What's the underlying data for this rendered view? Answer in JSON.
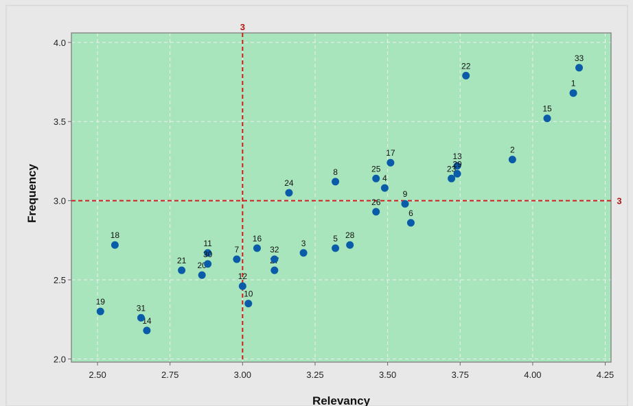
{
  "chart_data": {
    "type": "scatter",
    "xlabel": "Relevancy",
    "ylabel": "Frequency",
    "xlim": [
      2.41,
      4.27
    ],
    "ylim": [
      1.98,
      4.06
    ],
    "xticks": [
      2.5,
      2.75,
      3.0,
      3.25,
      3.5,
      3.75,
      4.0,
      4.25
    ],
    "yticks": [
      2.0,
      2.5,
      3.0,
      3.5,
      4.0
    ],
    "xtick_labels": [
      "2.50",
      "2.75",
      "3.00",
      "3.25",
      "3.50",
      "3.75",
      "4.00",
      "4.25"
    ],
    "ytick_labels": [
      "2.0",
      "2.5",
      "3.0",
      "3.5",
      "4.0"
    ],
    "grid": true,
    "reference_lines": [
      {
        "orientation": "vertical",
        "value": 3.0,
        "label": "3"
      },
      {
        "orientation": "horizontal",
        "value": 3.0,
        "label": "3"
      }
    ],
    "points": [
      {
        "label": "1",
        "x": 4.14,
        "y": 3.68
      },
      {
        "label": "2",
        "x": 3.93,
        "y": 3.26
      },
      {
        "label": "3",
        "x": 3.21,
        "y": 2.67
      },
      {
        "label": "4",
        "x": 3.49,
        "y": 3.08
      },
      {
        "label": "5",
        "x": 3.32,
        "y": 2.7
      },
      {
        "label": "6",
        "x": 3.58,
        "y": 2.86
      },
      {
        "label": "7",
        "x": 2.98,
        "y": 2.63
      },
      {
        "label": "8",
        "x": 3.32,
        "y": 3.12
      },
      {
        "label": "9",
        "x": 3.56,
        "y": 2.98
      },
      {
        "label": "10",
        "x": 3.02,
        "y": 2.35
      },
      {
        "label": "11",
        "x": 2.88,
        "y": 2.67
      },
      {
        "label": "12",
        "x": 3.0,
        "y": 2.46
      },
      {
        "label": "13",
        "x": 3.74,
        "y": 3.22
      },
      {
        "label": "14",
        "x": 2.67,
        "y": 2.18
      },
      {
        "label": "15",
        "x": 4.05,
        "y": 3.52
      },
      {
        "label": "16",
        "x": 3.05,
        "y": 2.7
      },
      {
        "label": "17",
        "x": 3.51,
        "y": 3.24
      },
      {
        "label": "18",
        "x": 2.56,
        "y": 2.72
      },
      {
        "label": "19",
        "x": 2.51,
        "y": 2.3
      },
      {
        "label": "20",
        "x": 2.86,
        "y": 2.53
      },
      {
        "label": "21",
        "x": 2.79,
        "y": 2.56
      },
      {
        "label": "22",
        "x": 3.77,
        "y": 3.79
      },
      {
        "label": "23",
        "x": 3.72,
        "y": 3.14
      },
      {
        "label": "24",
        "x": 3.16,
        "y": 3.05
      },
      {
        "label": "25",
        "x": 3.46,
        "y": 3.14
      },
      {
        "label": "26",
        "x": 3.46,
        "y": 2.93
      },
      {
        "label": "27",
        "x": 3.11,
        "y": 2.56
      },
      {
        "label": "28",
        "x": 3.37,
        "y": 2.72
      },
      {
        "label": "29",
        "x": 3.74,
        "y": 3.17
      },
      {
        "label": "30",
        "x": 2.88,
        "y": 2.6
      },
      {
        "label": "31",
        "x": 2.65,
        "y": 2.26
      },
      {
        "label": "32",
        "x": 3.11,
        "y": 2.63
      },
      {
        "label": "33",
        "x": 4.16,
        "y": 3.84
      }
    ],
    "colors": {
      "outer_background": "#e8e8e8",
      "plot_background": "#a8e4bc",
      "plot_border": "#8a8a8a",
      "grid": "#f0f0f0",
      "point": "#0a5ca8",
      "reference_line": "#cc1f1f",
      "reference_label": "#b01818"
    }
  }
}
